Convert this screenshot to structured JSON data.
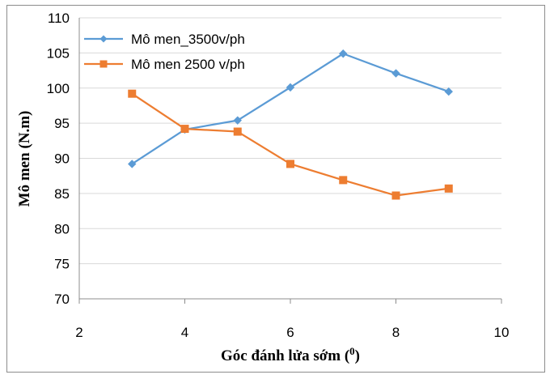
{
  "chart_data": {
    "type": "line",
    "title": "",
    "xlabel": "Góc đánh lửa sớm (0)",
    "ylabel": "Mô men (N.m)",
    "xlim": [
      2,
      10
    ],
    "ylim": [
      70,
      110
    ],
    "x_ticks": [
      "2",
      "4",
      "6",
      "8",
      "10"
    ],
    "y_ticks": [
      "70",
      "75",
      "80",
      "85",
      "90",
      "95",
      "100",
      "105",
      "110"
    ],
    "grid": "horizontal",
    "legend_position": "top-left",
    "series": [
      {
        "name": "Mô men_3500v/ph",
        "color": "#5b9bd5",
        "marker": "diamond",
        "x": [
          3,
          4,
          5,
          6,
          7,
          8,
          9
        ],
        "y": [
          89.2,
          94.1,
          95.4,
          100.1,
          104.9,
          102.1,
          99.5
        ]
      },
      {
        "name": "Mô men 2500 v/ph",
        "color": "#ed7d31",
        "marker": "square",
        "x": [
          3,
          4,
          5,
          6,
          7,
          8,
          9
        ],
        "y": [
          99.2,
          94.2,
          93.8,
          89.2,
          86.9,
          84.7,
          85.7
        ]
      }
    ]
  }
}
